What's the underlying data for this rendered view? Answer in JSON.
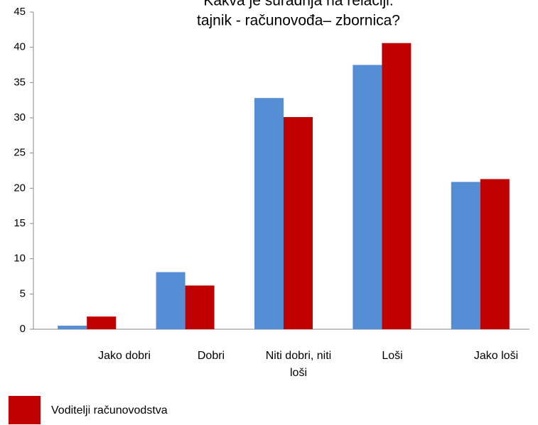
{
  "chart_data": {
    "type": "bar",
    "title": [
      "Kakva je suradnja na relaciji:",
      "tajnik - računovođa– zbornica?"
    ],
    "categories": [
      "Jako dobri",
      "Dobri",
      "Niti dobri, niti loši",
      "Loši",
      "Jako loši"
    ],
    "series": [
      {
        "color": "#558ed5",
        "values": [
          0.5,
          8.1,
          32.8,
          37.5,
          20.9
        ]
      },
      {
        "name": "Voditelji računovodstva",
        "color": "#c00000",
        "values": [
          1.8,
          6.2,
          30.1,
          40.6,
          21.3
        ]
      }
    ],
    "ylim": [
      0,
      45
    ],
    "yticks": [
      0,
      5,
      10,
      15,
      20,
      25,
      30,
      35,
      40,
      45
    ],
    "grid": false
  }
}
